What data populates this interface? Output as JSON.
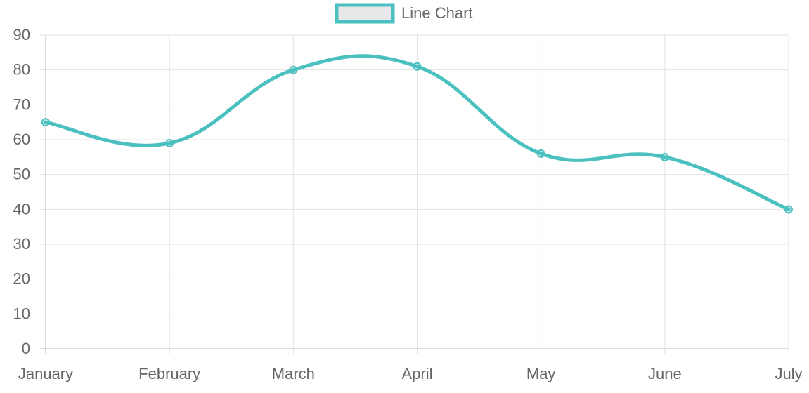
{
  "chart_data": {
    "type": "line",
    "categories": [
      "January",
      "February",
      "March",
      "April",
      "May",
      "June",
      "July"
    ],
    "series": [
      {
        "name": "Line Chart",
        "values": [
          65,
          59,
          80,
          81,
          56,
          55,
          40
        ],
        "color": "#4bc0c0",
        "fill": "#e8e8eb"
      }
    ],
    "yticks": [
      "0",
      "10",
      "20",
      "30",
      "40",
      "50",
      "60",
      "70",
      "80",
      "90"
    ],
    "ylim": [
      0,
      90
    ],
    "grid": true,
    "legend": "top-center",
    "xlabel": "",
    "ylabel": ""
  }
}
